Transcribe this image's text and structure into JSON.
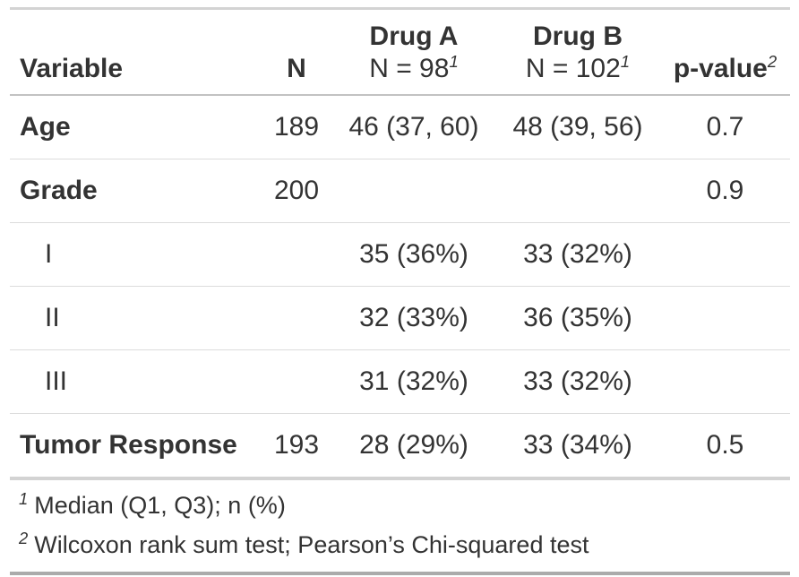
{
  "chart_data": {
    "type": "table",
    "columns": [
      {
        "label": "Variable"
      },
      {
        "label": "N"
      },
      {
        "label": "Drug A",
        "sublabel": "N = 98",
        "footnote_ref": "1"
      },
      {
        "label": "Drug B",
        "sublabel": "N = 102",
        "footnote_ref": "1"
      },
      {
        "label": "p-value",
        "footnote_ref": "2"
      }
    ],
    "rows": [
      {
        "label": "Age",
        "indent": false,
        "n": "189",
        "drug_a": "46 (37, 60)",
        "drug_b": "48 (39, 56)",
        "p_value": "0.7"
      },
      {
        "label": "Grade",
        "indent": false,
        "n": "200",
        "drug_a": "",
        "drug_b": "",
        "p_value": "0.9"
      },
      {
        "label": "I",
        "indent": true,
        "n": "",
        "drug_a": "35 (36%)",
        "drug_b": "33 (32%)",
        "p_value": ""
      },
      {
        "label": "II",
        "indent": true,
        "n": "",
        "drug_a": "32 (33%)",
        "drug_b": "36 (35%)",
        "p_value": ""
      },
      {
        "label": "III",
        "indent": true,
        "n": "",
        "drug_a": "31 (32%)",
        "drug_b": "33 (32%)",
        "p_value": ""
      },
      {
        "label": "Tumor Response",
        "indent": false,
        "n": "193",
        "drug_a": "28 (29%)",
        "drug_b": "33 (34%)",
        "p_value": "0.5"
      }
    ],
    "footnotes": [
      {
        "ref": "1",
        "text": "Median (Q1, Q3); n (%)"
      },
      {
        "ref": "2",
        "text": "Wilcoxon rank sum test; Pearson’s Chi-squared test"
      }
    ]
  },
  "colors": {
    "text": "#333333",
    "border_top": "#d3d3d3",
    "border_header": "#c2c2c2",
    "border_row": "#dcdcdc",
    "border_section": "#d3d3d3",
    "border_bottom": "#ababab"
  }
}
